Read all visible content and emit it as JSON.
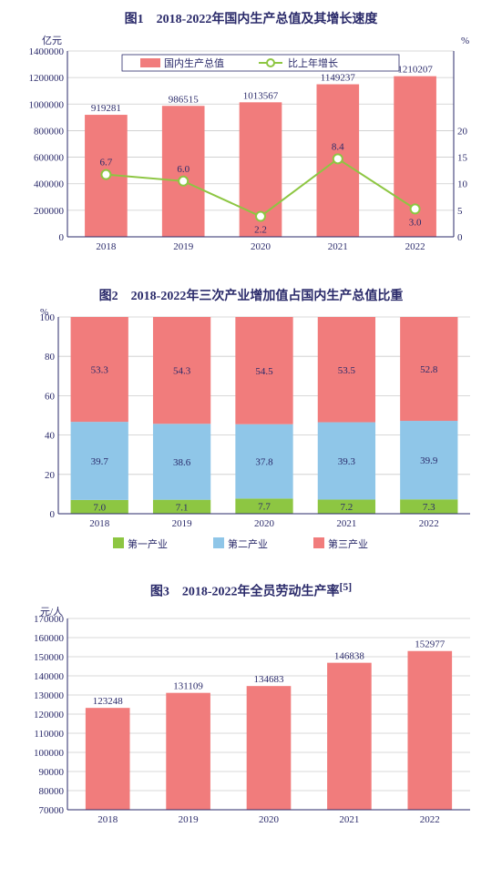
{
  "chart1": {
    "type": "bar+line",
    "title": "图1　2018-2022年国内生产总值及其增长速度",
    "categories": [
      "2018",
      "2019",
      "2020",
      "2021",
      "2022"
    ],
    "bar_values": [
      919281,
      986515,
      1013567,
      1149237,
      1210207
    ],
    "line_values": [
      6.7,
      6.0,
      2.2,
      8.4,
      3.0
    ],
    "y1_label": "亿元",
    "y2_label": "%",
    "y1_min": 0,
    "y1_max": 1400000,
    "y1_step": 200000,
    "y2_min": 0,
    "y2_max": 20,
    "y2_step": 5,
    "bar_color": "#f17c7c",
    "line_color": "#8dc642",
    "marker_fill": "#ffffff",
    "grid_color": "#cccccc",
    "text_color": "#2a2a6a",
    "legend": {
      "bar": "国内生产总值",
      "line": "比上年增长"
    },
    "font_size_axis": 11,
    "font_size_label": 11,
    "font_size_title": 14,
    "bar_width": 0.55
  },
  "chart2": {
    "type": "stacked-bar",
    "title": "图2　2018-2022年三次产业增加值占国内生产总值比重",
    "categories": [
      "2018",
      "2019",
      "2020",
      "2021",
      "2022"
    ],
    "series": [
      {
        "name": "第一产业",
        "color": "#8dc642",
        "values": [
          7.0,
          7.1,
          7.7,
          7.2,
          7.3
        ]
      },
      {
        "name": "第二产业",
        "color": "#8fc6e8",
        "values": [
          39.7,
          38.6,
          37.8,
          39.3,
          39.9
        ]
      },
      {
        "name": "第三产业",
        "color": "#f17c7c",
        "values": [
          53.3,
          54.3,
          54.5,
          53.5,
          52.8
        ]
      }
    ],
    "y_label": "%",
    "y_min": 0,
    "y_max": 100,
    "y_step": 20,
    "grid_color": "#cccccc",
    "text_color": "#2a2a6a",
    "font_size_axis": 11,
    "font_size_label": 11,
    "font_size_title": 14,
    "bar_width": 0.7
  },
  "chart3": {
    "type": "bar",
    "title": "图3　2018-2022年全员劳动生产率",
    "title_suffix": "[5]",
    "categories": [
      "2018",
      "2019",
      "2020",
      "2021",
      "2022"
    ],
    "values": [
      123248,
      131109,
      134683,
      146838,
      152977
    ],
    "y_label": "元/人",
    "y_min": 70000,
    "y_max": 170000,
    "y_step": 10000,
    "bar_color": "#f17c7c",
    "grid_color": "#cccccc",
    "text_color": "#2a2a6a",
    "font_size_axis": 11,
    "font_size_label": 11,
    "font_size_title": 14,
    "bar_width": 0.55
  }
}
